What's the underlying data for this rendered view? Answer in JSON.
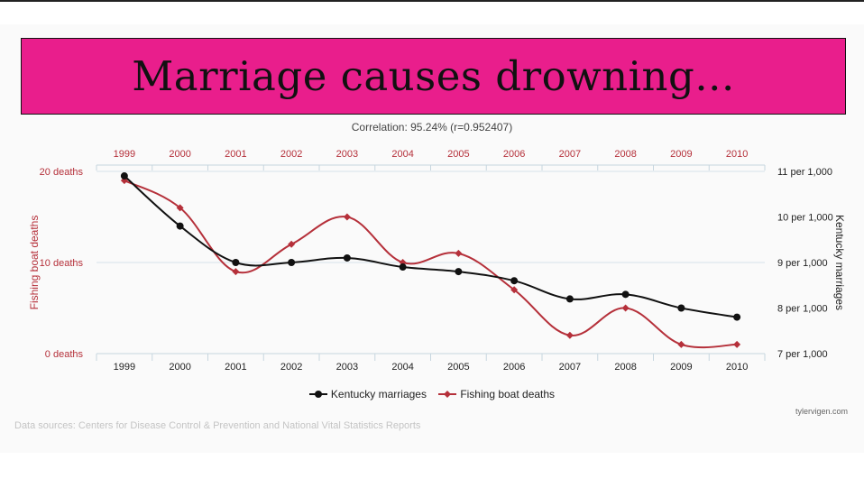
{
  "header": {
    "title": "Marriage causes drowning..."
  },
  "colors": {
    "banner": "#e91e8c",
    "red_series": "#b5303a",
    "black_series": "#111111"
  },
  "chart_data": {
    "type": "line",
    "subtitle": "Correlation: 95.24% (r=0.952407)",
    "categories": [
      "1999",
      "2000",
      "2001",
      "2002",
      "2003",
      "2004",
      "2005",
      "2006",
      "2007",
      "2008",
      "2009",
      "2010"
    ],
    "series": [
      {
        "name": "Kentucky marriages",
        "axis": "right",
        "color": "#111111",
        "marker": "circle",
        "values": [
          10.9,
          9.8,
          9.0,
          9.0,
          9.1,
          8.9,
          8.8,
          8.6,
          8.2,
          8.3,
          8.0,
          7.8
        ]
      },
      {
        "name": "Fishing boat deaths",
        "axis": "left",
        "color": "#b5303a",
        "marker": "diamond",
        "values": [
          19,
          16,
          9,
          12,
          15,
          10,
          11,
          7,
          2,
          5,
          1,
          1
        ]
      }
    ],
    "left_axis": {
      "title": "Fishing boat deaths",
      "range": [
        0,
        20
      ],
      "ticks": [
        0,
        10,
        20
      ],
      "tick_labels": [
        "0 deaths",
        "10 deaths",
        "20 deaths"
      ]
    },
    "right_axis": {
      "title": "Kentucky marriages",
      "range": [
        7,
        11
      ],
      "ticks": [
        7,
        8,
        9,
        10,
        11
      ],
      "tick_labels": [
        "7 per 1,000",
        "8 per 1,000",
        "9 per 1,000",
        "10 per 1,000",
        "11 per 1,000"
      ]
    },
    "legend": {
      "position": "bottom-center",
      "items": [
        "Kentucky marriages",
        "Fishing boat deaths"
      ]
    }
  },
  "footer": {
    "credit": "tylervigen.com",
    "sources": "Data sources: Centers for Disease Control & Prevention and National Vital Statistics Reports"
  }
}
